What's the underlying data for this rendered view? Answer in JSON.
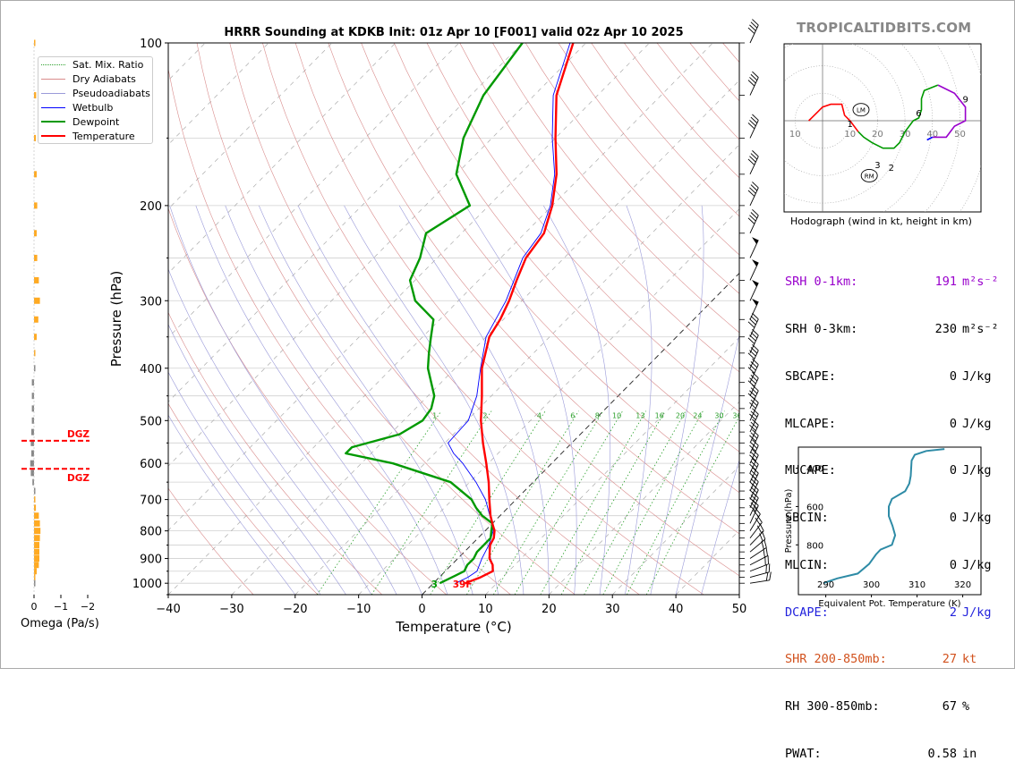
{
  "brand": "TROPICALTIDBITS.COM",
  "title": "HRRR Sounding at KDKB Init: 01z Apr 10 [F001] valid 02z Apr 10 2025",
  "legend": [
    {
      "label": "Sat. Mix. Ratio",
      "color": "#2ca02c",
      "style": "dotted"
    },
    {
      "label": "Dry Adiabats",
      "color": "#d98c8c",
      "style": "solid-thin"
    },
    {
      "label": "Pseudoadiabats",
      "color": "#9a9ad9",
      "style": "solid-thin"
    },
    {
      "label": "Wetbulb",
      "color": "#0000ff",
      "style": "solid"
    },
    {
      "label": "Dewpoint",
      "color": "#009900",
      "style": "thick"
    },
    {
      "label": "Temperature",
      "color": "#ff0000",
      "style": "thick"
    }
  ],
  "chart_data": [
    {
      "type": "line",
      "name": "skewt",
      "xlabel": "Temperature (°C)",
      "ylabel": "Pressure (hPa)",
      "xlim": [
        -40,
        50
      ],
      "ylim": [
        1050,
        100
      ],
      "x_ticks": [
        "−40",
        "−30",
        "−20",
        "−10",
        "0",
        "10",
        "20",
        "30",
        "40",
        "50"
      ],
      "y_ticks": [
        "100",
        "200",
        "300",
        "400",
        "500",
        "600",
        "700",
        "800",
        "900",
        "1000"
      ],
      "series": [
        {
          "name": "Temperature",
          "color": "#ff0000",
          "points": [
            [
              1000,
              5.0
            ],
            [
              975,
              6.5
            ],
            [
              950,
              7.5
            ],
            [
              925,
              6.5
            ],
            [
              900,
              5.0
            ],
            [
              875,
              4.0
            ],
            [
              850,
              3.0
            ],
            [
              825,
              2.5
            ],
            [
              800,
              1.5
            ],
            [
              775,
              0.0
            ],
            [
              750,
              -1.5
            ],
            [
              700,
              -4.2
            ],
            [
              650,
              -7.0
            ],
            [
              600,
              -10.3
            ],
            [
              550,
              -14.0
            ],
            [
              500,
              -17.8
            ],
            [
              450,
              -21.5
            ],
            [
              400,
              -25.8
            ],
            [
              350,
              -29.5
            ],
            [
              325,
              -30.5
            ],
            [
              300,
              -32.0
            ],
            [
              275,
              -34.0
            ],
            [
              250,
              -36.0
            ],
            [
              225,
              -37.0
            ],
            [
              200,
              -40.0
            ],
            [
              175,
              -44.2
            ],
            [
              150,
              -50.0
            ],
            [
              125,
              -56.5
            ],
            [
              100,
              -62.0
            ]
          ]
        },
        {
          "name": "Dewpoint",
          "color": "#009900",
          "points": [
            [
              1000,
              1.0
            ],
            [
              975,
              2.0
            ],
            [
              950,
              3.0
            ],
            [
              925,
              2.5
            ],
            [
              900,
              2.5
            ],
            [
              875,
              2.0
            ],
            [
              850,
              2.0
            ],
            [
              825,
              2.0
            ],
            [
              800,
              1.0
            ],
            [
              775,
              0.0
            ],
            [
              750,
              -2.8
            ],
            [
              725,
              -5.0
            ],
            [
              700,
              -7.0
            ],
            [
              650,
              -13.0
            ],
            [
              600,
              -25.0
            ],
            [
              575,
              -34.0
            ],
            [
              560,
              -34.0
            ],
            [
              530,
              -28.5
            ],
            [
              500,
              -27.0
            ],
            [
              475,
              -27.5
            ],
            [
              450,
              -29.0
            ],
            [
              400,
              -34.3
            ],
            [
              375,
              -36.5
            ],
            [
              350,
              -38.7
            ],
            [
              325,
              -41.0
            ],
            [
              300,
              -46.8
            ],
            [
              275,
              -50.8
            ],
            [
              250,
              -52.7
            ],
            [
              225,
              -55.6
            ],
            [
              200,
              -53.0
            ],
            [
              175,
              -60.0
            ],
            [
              150,
              -64.5
            ],
            [
              125,
              -68.0
            ],
            [
              100,
              -70.0
            ]
          ]
        },
        {
          "name": "Wetbulb",
          "color": "#0000ff",
          "points": [
            [
              1000,
              3.5
            ],
            [
              975,
              4.5
            ],
            [
              950,
              5.0
            ],
            [
              900,
              3.8
            ],
            [
              850,
              2.8
            ],
            [
              800,
              1.3
            ],
            [
              750,
              -1.6
            ],
            [
              700,
              -4.8
            ],
            [
              650,
              -9.0
            ],
            [
              600,
              -14.0
            ],
            [
              575,
              -17.0
            ],
            [
              550,
              -19.5
            ],
            [
              500,
              -19.8
            ],
            [
              450,
              -22.3
            ],
            [
              400,
              -26.0
            ],
            [
              350,
              -30.0
            ],
            [
              300,
              -32.5
            ],
            [
              250,
              -36.5
            ],
            [
              225,
              -37.5
            ],
            [
              200,
              -40.3
            ],
            [
              175,
              -44.5
            ],
            [
              150,
              -50.5
            ],
            [
              125,
              -57.0
            ],
            [
              100,
              -62.5
            ]
          ]
        }
      ],
      "surface_label": "39F",
      "dewpoint_surface_label": "3",
      "dgz_label": "DGZ",
      "dgz_pressures": [
        545,
        614
      ],
      "mixing_ratio_labels": [
        "1",
        "2",
        "4",
        "6",
        "8",
        "10",
        "13",
        "16",
        "20",
        "24",
        "30",
        "36"
      ],
      "wind_barb_levels": [
        100,
        125,
        150,
        175,
        200,
        225,
        250,
        275,
        300,
        325,
        350,
        375,
        400,
        425,
        450,
        475,
        500,
        525,
        550,
        575,
        600,
        625,
        650,
        675,
        700,
        725,
        750,
        775,
        800,
        825,
        850,
        875,
        900,
        925,
        950,
        975,
        1000
      ]
    },
    {
      "type": "bar",
      "name": "omega",
      "xlabel": "Omega (Pa/s)",
      "x_ticks": [
        "0",
        "−1",
        "−2"
      ],
      "xlim": [
        0.1,
        -2.4
      ],
      "levels_hpa": [
        100,
        125,
        150,
        175,
        200,
        225,
        250,
        275,
        300,
        325,
        350,
        375,
        400,
        425,
        450,
        475,
        500,
        525,
        550,
        575,
        600,
        625,
        650,
        675,
        700,
        725,
        750,
        775,
        800,
        825,
        850,
        875,
        900,
        925,
        950,
        975,
        1000
      ],
      "values": [
        -0.04,
        -0.08,
        -0.07,
        -0.1,
        -0.12,
        -0.1,
        -0.12,
        -0.18,
        -0.22,
        -0.16,
        -0.1,
        -0.02,
        0.0,
        0.08,
        0.08,
        0.08,
        0.08,
        0.1,
        0.12,
        0.1,
        0.14,
        0.12,
        0.06,
        0.0,
        -0.05,
        -0.07,
        -0.18,
        -0.22,
        -0.24,
        -0.22,
        -0.2,
        -0.2,
        -0.2,
        -0.18,
        -0.1,
        -0.04,
        0.0
      ]
    },
    {
      "type": "line",
      "name": "hodograph",
      "caption": "Hodograph (wind in kt, height in km)",
      "ring_labels": [
        "10",
        "10",
        "20",
        "30",
        "40",
        "50"
      ],
      "height_labels": [
        "1",
        "2",
        "3",
        "6",
        "9"
      ],
      "markers": [
        "LM",
        "RM"
      ],
      "points_kt": [
        [
          -5,
          0
        ],
        [
          -4,
          1
        ],
        [
          -2,
          3
        ],
        [
          0,
          5
        ],
        [
          3,
          6
        ],
        [
          7,
          6
        ],
        [
          8,
          2
        ],
        [
          10,
          0
        ],
        [
          13,
          -4
        ],
        [
          15,
          -6
        ],
        [
          18,
          -8
        ],
        [
          22,
          -10
        ],
        [
          26,
          -10
        ],
        [
          28,
          -8
        ],
        [
          30,
          -4
        ],
        [
          33,
          0
        ],
        [
          35,
          1
        ],
        [
          36,
          4
        ],
        [
          36,
          8
        ],
        [
          37,
          11
        ],
        [
          42,
          13
        ],
        [
          48,
          10
        ],
        [
          52,
          5
        ],
        [
          52,
          0
        ],
        [
          48,
          -2
        ],
        [
          45,
          -6
        ],
        [
          40,
          -6
        ],
        [
          38,
          -7
        ]
      ],
      "segment_colors": [
        "#ff0000",
        "#009900",
        "#9900cc",
        "#0000ff"
      ]
    },
    {
      "type": "line",
      "name": "theta-e",
      "xlabel": "Equivalent Pot. Temperature (K)",
      "ylabel": "Pressure (hPa)",
      "x_ticks": [
        "290",
        "300",
        "310",
        "320"
      ],
      "y_ticks": [
        "400",
        "600",
        "800"
      ],
      "xlim": [
        284,
        324
      ],
      "ylim": [
        1060,
        290
      ],
      "color": "#2e8ba6",
      "points": [
        [
          1000,
          289.5
        ],
        [
          975,
          292.5
        ],
        [
          950,
          297
        ],
        [
          900,
          299.5
        ],
        [
          850,
          301
        ],
        [
          825,
          302
        ],
        [
          800,
          304.5
        ],
        [
          750,
          305.2
        ],
        [
          700,
          304.6
        ],
        [
          650,
          303.8
        ],
        [
          600,
          303.8
        ],
        [
          560,
          304.5
        ],
        [
          520,
          307.4
        ],
        [
          480,
          308.3
        ],
        [
          440,
          308.6
        ],
        [
          400,
          308.7
        ],
        [
          360,
          308.8
        ],
        [
          330,
          309.5
        ],
        [
          310,
          312
        ],
        [
          300,
          316
        ]
      ]
    }
  ],
  "stats": [
    {
      "label": "SRH 0-1km:",
      "value": "191",
      "unit": "m²s⁻²",
      "color": "#9900cc"
    },
    {
      "label": "SRH 0-3km:",
      "value": "230",
      "unit": "m²s⁻²",
      "color": "#000000"
    },
    {
      "label": "SBCAPE:",
      "value": "0",
      "unit": "J/kg",
      "color": "#000000"
    },
    {
      "label": "MLCAPE:",
      "value": "0",
      "unit": "J/kg",
      "color": "#000000"
    },
    {
      "label": "MUCAPE:",
      "value": "0",
      "unit": "J/kg",
      "color": "#000000"
    },
    {
      "label": "SBCIN:",
      "value": "0",
      "unit": "J/kg",
      "color": "#000000"
    },
    {
      "label": "MLCIN:",
      "value": "0",
      "unit": "J/kg",
      "color": "#000000"
    },
    {
      "label": "DCAPE:",
      "value": "2",
      "unit": "J/kg",
      "color": "#2222dd"
    },
    {
      "label": "SHR 200-850mb:",
      "value": "27",
      "unit": "kt",
      "color": "#d2521e"
    },
    {
      "label": "RH 300-850mb:",
      "value": "67",
      "unit": "%",
      "color": "#000000"
    },
    {
      "label": "PWAT:",
      "value": "0.58",
      "unit": "in",
      "color": "#000000"
    }
  ]
}
